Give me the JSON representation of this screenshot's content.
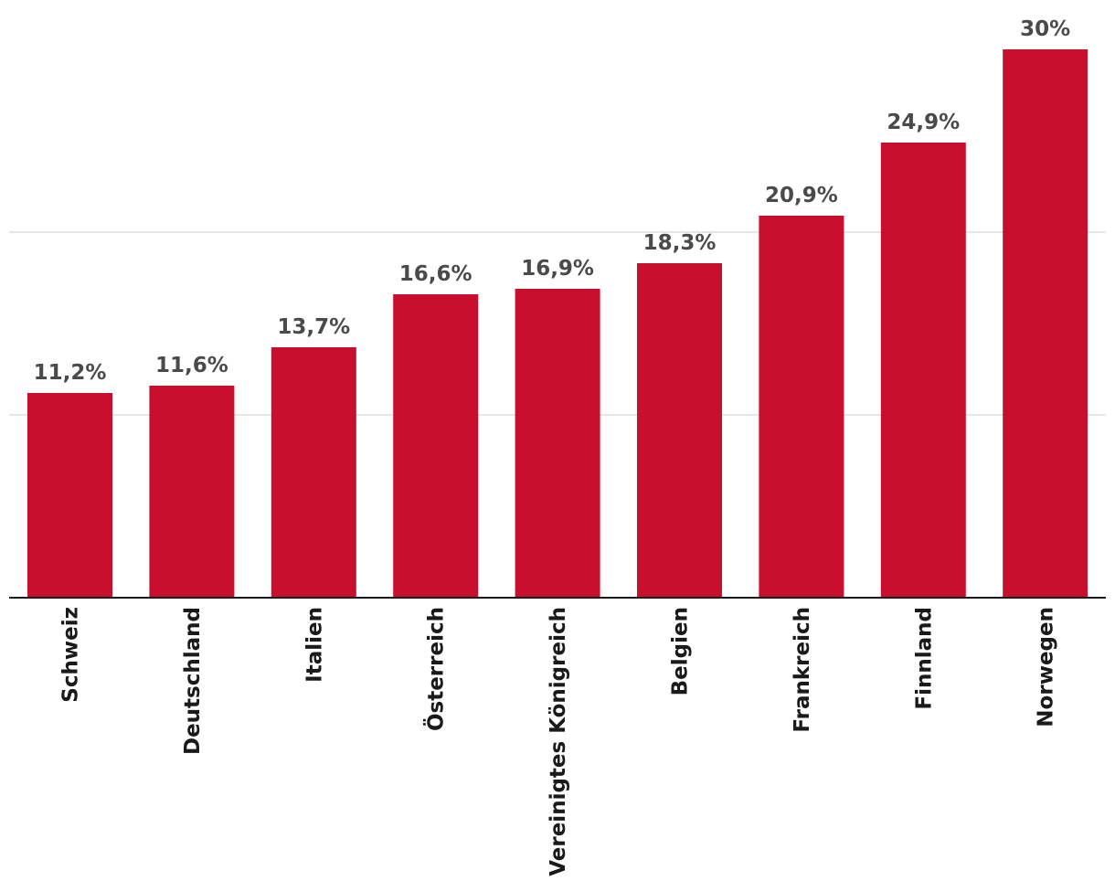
{
  "chart_data": {
    "type": "bar",
    "categories": [
      "Schweiz",
      "Deutschland",
      "Italien",
      "Österreich",
      "Vereinigtes Königreich",
      "Belgien",
      "Frankreich",
      "Finnland",
      "Norwegen"
    ],
    "values": [
      11.2,
      11.6,
      13.7,
      16.6,
      16.9,
      18.3,
      20.9,
      24.9,
      30
    ],
    "value_labels": [
      "11,2%",
      "11,6%",
      "13,7%",
      "16,6%",
      "16,9%",
      "18,3%",
      "20,9%",
      "24,9%",
      "30%"
    ],
    "title": "",
    "xlabel": "",
    "ylabel": "",
    "ylim": [
      0,
      30
    ],
    "grid_values": [
      10,
      20
    ],
    "grid": true,
    "legend": "none",
    "colors": {
      "bar": "#c8102e",
      "value_label": "#4a4a4a",
      "category_label": "#1a1a1a",
      "gridline": "#e6e6e6",
      "axis": "#1a1a1a"
    }
  }
}
